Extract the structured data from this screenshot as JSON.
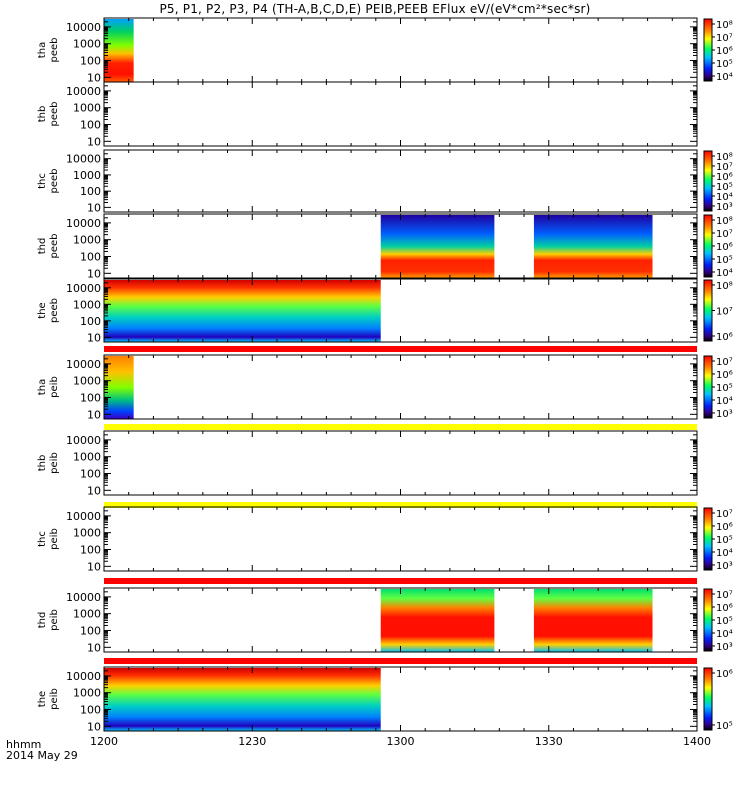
{
  "title": "P5, P1, P2, P3, P4 (TH-A,B,C,D,E) PEIB,PEEB EFlux eV/(eV*cm²*sec*sr)",
  "footer": {
    "hhmm": "hhmm",
    "date": "2014 May 29"
  },
  "colors": {
    "bar_red": "#ff0000",
    "bar_yellow": "#ffff00",
    "frame": "#000000"
  },
  "chart_data": {
    "type": "heatmap",
    "x_ticks": [
      "1200",
      "1230",
      "1300",
      "1330",
      "1400"
    ],
    "xlim_minutes": [
      0,
      120
    ],
    "y_ticks": [
      "10",
      "100",
      "1000",
      "10000"
    ],
    "y_scale": "log",
    "panels": [
      {
        "id": "tha-peeb",
        "probe": "tha",
        "product": "peeb",
        "segments": [
          {
            "x0": 0,
            "x1": 6,
            "profile": "upper-green-lower-red"
          }
        ],
        "colorbar": [
          "10⁸",
          "10⁷",
          "10⁶",
          "10⁵",
          "10⁴"
        ]
      },
      {
        "id": "thb-peeb",
        "probe": "thb",
        "product": "peeb",
        "segments": [],
        "colorbar": []
      },
      {
        "id": "thc-peeb",
        "probe": "thc",
        "product": "peeb",
        "segments": [],
        "colorbar": [
          "10⁸",
          "10⁷",
          "10⁶",
          "10⁵",
          "10⁴",
          "10³"
        ]
      },
      {
        "id": "thd-peeb",
        "probe": "thd",
        "product": "peeb",
        "segments": [
          {
            "x0": 56,
            "x1": 79,
            "profile": "blue-top-red-bottom"
          },
          {
            "x0": 87,
            "x1": 111,
            "profile": "blue-top-red-bottom"
          }
        ],
        "colorbar": [
          "10⁸",
          "10⁷",
          "10⁶",
          "10⁵",
          "10⁴"
        ]
      },
      {
        "id": "the-peeb",
        "probe": "the",
        "product": "peeb",
        "segments": [
          {
            "x0": 0,
            "x1": 56,
            "profile": "red-top-green-blue"
          }
        ],
        "colorbar": [
          "10⁸",
          "10⁷",
          "10⁶"
        ],
        "bar_after": "red"
      },
      {
        "id": "tha-peib",
        "probe": "tha",
        "product": "peib",
        "segments": [
          {
            "x0": 0,
            "x1": 6,
            "profile": "orange-top-blue-bottom"
          }
        ],
        "colorbar": [
          "10⁷",
          "10⁶",
          "10⁵",
          "10⁴",
          "10³"
        ],
        "bar_after": "yellow"
      },
      {
        "id": "thb-peib",
        "probe": "thb",
        "product": "peib",
        "segments": [],
        "colorbar": [],
        "bar_after": "yellow"
      },
      {
        "id": "thc-peib",
        "probe": "thc",
        "product": "peib",
        "segments": [],
        "colorbar": [
          "10⁷",
          "10⁶",
          "10⁵",
          "10⁴",
          "10³"
        ],
        "bar_after": "red"
      },
      {
        "id": "thd-peib",
        "probe": "thd",
        "product": "peib",
        "segments": [
          {
            "x0": 56,
            "x1": 79,
            "profile": "red-core-green-top"
          },
          {
            "x0": 87,
            "x1": 111,
            "profile": "red-core-green-top"
          }
        ],
        "colorbar": [
          "10⁷",
          "10⁶",
          "10⁵",
          "10⁴",
          "10³"
        ],
        "bar_after": "red"
      },
      {
        "id": "the-peib",
        "probe": "the",
        "product": "peib",
        "segments": [
          {
            "x0": 0,
            "x1": 56,
            "profile": "red-top-green-blue"
          }
        ],
        "colorbar": [
          "10⁶",
          "10⁵"
        ]
      }
    ]
  }
}
